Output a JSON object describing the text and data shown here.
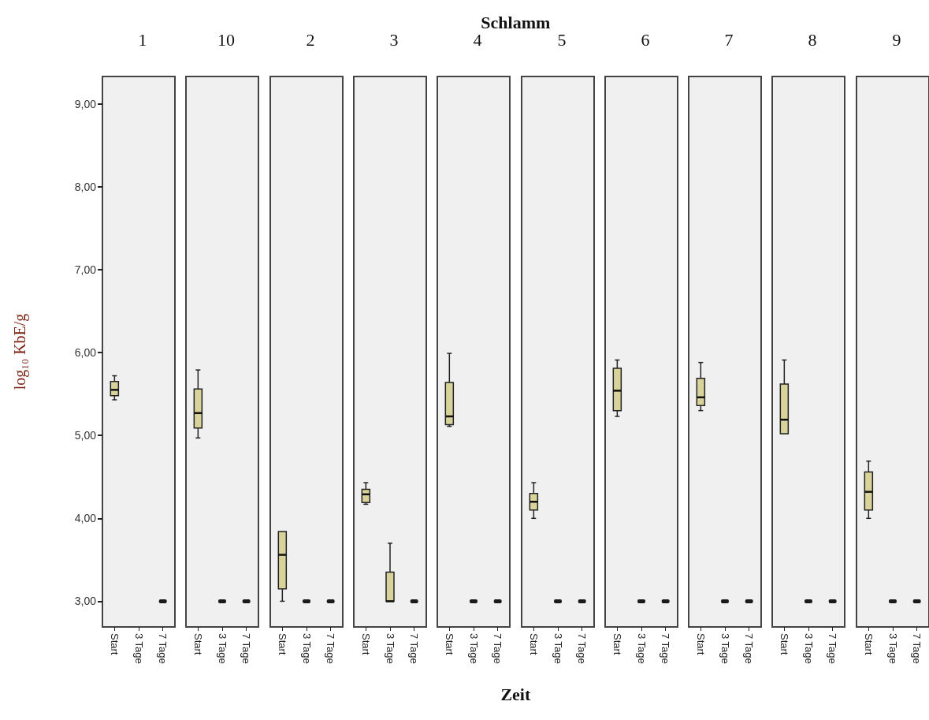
{
  "chart_data": [
    {
      "type": "box",
      "title": "1",
      "ylabel": "log₁₀ KbE/g",
      "annotations": [
        "Schlamm",
        "Zeit"
      ],
      "categories": [
        "Start",
        "3 Tage",
        "7 Tage"
      ],
      "colors": [
        "#d8d39a",
        null,
        "#1a1a1a"
      ],
      "grid": false,
      "ylim": [
        2.69,
        9.33
      ],
      "yticks": [
        {
          "value": 3,
          "label": "3,00"
        },
        {
          "value": 4,
          "label": "4,00"
        },
        {
          "value": 5,
          "label": "5,00"
        },
        {
          "value": 6,
          "label": "6,00"
        },
        {
          "value": 7,
          "label": "7,00"
        },
        {
          "value": 8,
          "label": "8,00"
        },
        {
          "value": 9,
          "label": "9,00"
        }
      ],
      "boxes": [
        {
          "low": 5.43,
          "q1": 5.48,
          "median": 5.55,
          "q3": 5.65,
          "high": 5.72
        },
        null,
        {
          "low": 3,
          "q1": 3,
          "median": 3,
          "q3": 3,
          "high": 3
        }
      ]
    },
    {
      "type": "box",
      "title": "10",
      "categories": [
        "Start",
        "3 Tage",
        "7 Tage"
      ],
      "colors": [
        "#d8d39a",
        "#1a1a1a",
        "#1a1a1a"
      ],
      "grid": false,
      "tick_labels": "x",
      "ylim": [
        2.69,
        9.33
      ],
      "boxes": [
        {
          "low": 4.97,
          "q1": 5.09,
          "median": 5.27,
          "q3": 5.56,
          "high": 5.79
        },
        {
          "low": 3,
          "q1": 3,
          "median": 3,
          "q3": 3,
          "high": 3
        },
        {
          "low": 3,
          "q1": 3,
          "median": 3,
          "q3": 3,
          "high": 3
        }
      ]
    },
    {
      "type": "box",
      "title": "2",
      "categories": [
        "Start",
        "3 Tage",
        "7 Tage"
      ],
      "colors": [
        "#d8d39a",
        "#1a1a1a",
        "#1a1a1a"
      ],
      "grid": false,
      "tick_labels": "x",
      "ylim": [
        2.69,
        9.33
      ],
      "boxes": [
        {
          "low": 3.0,
          "q1": 3.15,
          "median": 3.56,
          "q3": 3.84,
          "high": 3.84
        },
        {
          "low": 3,
          "q1": 3,
          "median": 3,
          "q3": 3,
          "high": 3
        },
        {
          "low": 3,
          "q1": 3,
          "median": 3,
          "q3": 3,
          "high": 3
        }
      ]
    },
    {
      "type": "box",
      "title": "3",
      "categories": [
        "Start",
        "3 Tage",
        "7 Tage"
      ],
      "colors": [
        "#d8d39a",
        "#d8d39a",
        "#1a1a1a"
      ],
      "grid": false,
      "tick_labels": "x",
      "ylim": [
        2.69,
        9.33
      ],
      "boxes": [
        {
          "low": 4.17,
          "q1": 4.19,
          "median": 4.29,
          "q3": 4.35,
          "high": 4.43
        },
        {
          "low": 3,
          "q1": 3,
          "median": 3,
          "q3": 3.35,
          "high": 3.7
        },
        {
          "low": 3,
          "q1": 3,
          "median": 3,
          "q3": 3,
          "high": 3
        }
      ]
    },
    {
      "type": "box",
      "title": "4",
      "categories": [
        "Start",
        "3 Tage",
        "7 Tage"
      ],
      "colors": [
        "#d8d39a",
        "#1a1a1a",
        "#1a1a1a"
      ],
      "grid": false,
      "tick_labels": "x",
      "ylim": [
        2.69,
        9.33
      ],
      "boxes": [
        {
          "low": 5.11,
          "q1": 5.13,
          "median": 5.23,
          "q3": 5.64,
          "high": 5.99
        },
        {
          "low": 3,
          "q1": 3,
          "median": 3,
          "q3": 3,
          "high": 3
        },
        {
          "low": 3,
          "q1": 3,
          "median": 3,
          "q3": 3,
          "high": 3
        }
      ]
    },
    {
      "type": "box",
      "title": "5",
      "categories": [
        "Start",
        "3 Tage",
        "7 Tage"
      ],
      "colors": [
        "#d8d39a",
        "#1a1a1a",
        "#1a1a1a"
      ],
      "grid": false,
      "tick_labels": "x",
      "ylim": [
        2.69,
        9.33
      ],
      "boxes": [
        {
          "low": 4.0,
          "q1": 4.1,
          "median": 4.2,
          "q3": 4.3,
          "high": 4.43
        },
        {
          "low": 3,
          "q1": 3,
          "median": 3,
          "q3": 3,
          "high": 3
        },
        {
          "low": 3,
          "q1": 3,
          "median": 3,
          "q3": 3,
          "high": 3
        }
      ]
    },
    {
      "type": "box",
      "title": "6",
      "categories": [
        "Start",
        "3 Tage",
        "7 Tage"
      ],
      "colors": [
        "#d8d39a",
        "#1a1a1a",
        "#1a1a1a"
      ],
      "grid": false,
      "tick_labels": "x",
      "ylim": [
        2.69,
        9.33
      ],
      "boxes": [
        {
          "low": 5.23,
          "q1": 5.3,
          "median": 5.54,
          "q3": 5.81,
          "high": 5.91
        },
        {
          "low": 3,
          "q1": 3,
          "median": 3,
          "q3": 3,
          "high": 3
        },
        {
          "low": 3,
          "q1": 3,
          "median": 3,
          "q3": 3,
          "high": 3
        }
      ]
    },
    {
      "type": "box",
      "title": "7",
      "categories": [
        "Start",
        "3 Tage",
        "7 Tage"
      ],
      "colors": [
        "#d8d39a",
        "#1a1a1a",
        "#1a1a1a"
      ],
      "grid": false,
      "tick_labels": "x",
      "ylim": [
        2.69,
        9.33
      ],
      "boxes": [
        {
          "low": 5.3,
          "q1": 5.36,
          "median": 5.46,
          "q3": 5.69,
          "high": 5.88
        },
        {
          "low": 3,
          "q1": 3,
          "median": 3,
          "q3": 3,
          "high": 3
        },
        {
          "low": 3,
          "q1": 3,
          "median": 3,
          "q3": 3,
          "high": 3
        }
      ]
    },
    {
      "type": "box",
      "title": "8",
      "categories": [
        "Start",
        "3 Tage",
        "7 Tage"
      ],
      "colors": [
        "#d8d39a",
        "#1a1a1a",
        "#1a1a1a"
      ],
      "grid": false,
      "tick_labels": "x",
      "ylim": [
        2.69,
        9.33
      ],
      "boxes": [
        {
          "low": 5.02,
          "q1": 5.02,
          "median": 5.19,
          "q3": 5.62,
          "high": 5.91
        },
        {
          "low": 3,
          "q1": 3,
          "median": 3,
          "q3": 3,
          "high": 3
        },
        {
          "low": 3,
          "q1": 3,
          "median": 3,
          "q3": 3,
          "high": 3
        }
      ]
    },
    {
      "type": "box",
      "title": "9",
      "categories": [
        "Start",
        "3 Tage",
        "7 Tage"
      ],
      "colors": [
        "#d8d39a",
        "#1a1a1a",
        "#1a1a1a"
      ],
      "grid": false,
      "tick_labels": "x",
      "ylim": [
        2.69,
        9.33
      ],
      "boxes": [
        {
          "low": 4.0,
          "q1": 4.1,
          "median": 4.32,
          "q3": 4.56,
          "high": 4.69
        },
        {
          "low": 3,
          "q1": 3,
          "median": 3,
          "q3": 3,
          "high": 3
        },
        {
          "low": 3,
          "q1": 3,
          "median": 3,
          "q3": 3,
          "high": 3
        }
      ]
    }
  ]
}
